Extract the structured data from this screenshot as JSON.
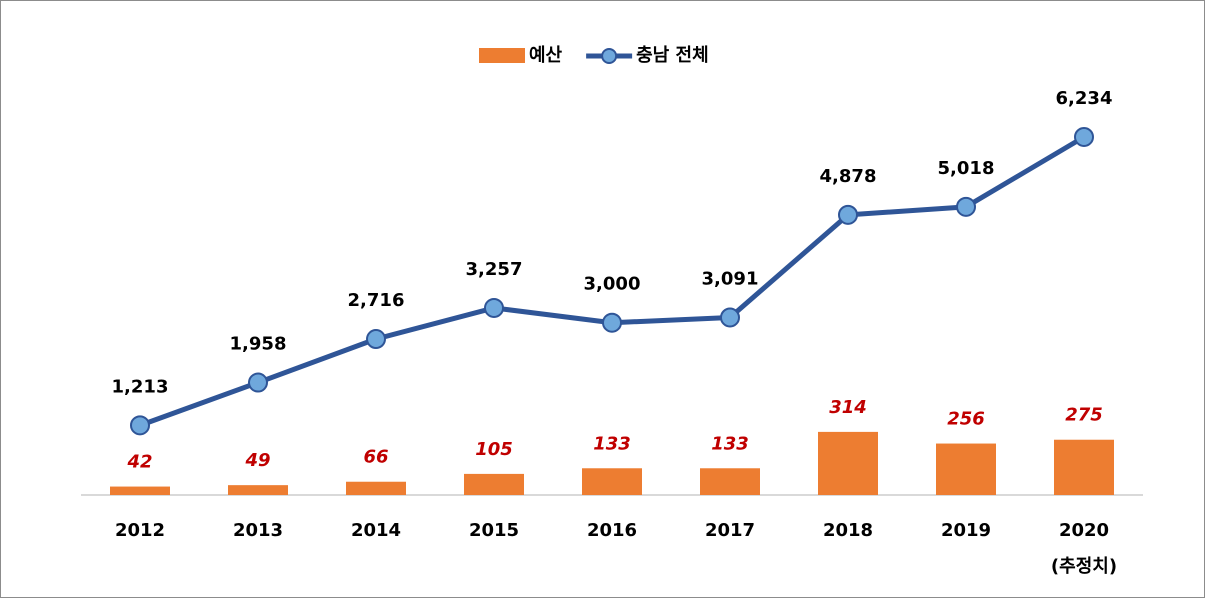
{
  "chart_data": {
    "type": "bar-line",
    "categories": [
      "2012",
      "2013",
      "2014",
      "2015",
      "2016",
      "2017",
      "2018",
      "2019",
      "2020\n(추정치)"
    ],
    "series": [
      {
        "name": "예산",
        "type": "bar",
        "color": "#ed7d31",
        "label_color": "#c00000",
        "values": [
          42,
          49,
          66,
          105,
          133,
          133,
          314,
          256,
          275
        ]
      },
      {
        "name": "충남 전체",
        "type": "line",
        "axis": "y2",
        "color": "#2f5597",
        "marker_color": "#6fa8dc",
        "values": [
          1213,
          1958,
          2716,
          3257,
          3000,
          3091,
          4878,
          5018,
          6234
        ],
        "value_labels": [
          "1,213",
          "1,958",
          "2,716",
          "3,257",
          "3,000",
          "3,091",
          "4,878",
          "5,018",
          "6,234"
        ]
      }
    ],
    "ylim": [
      0,
      2000
    ],
    "y2lim": [
      0,
      7000
    ],
    "legend": "top"
  }
}
